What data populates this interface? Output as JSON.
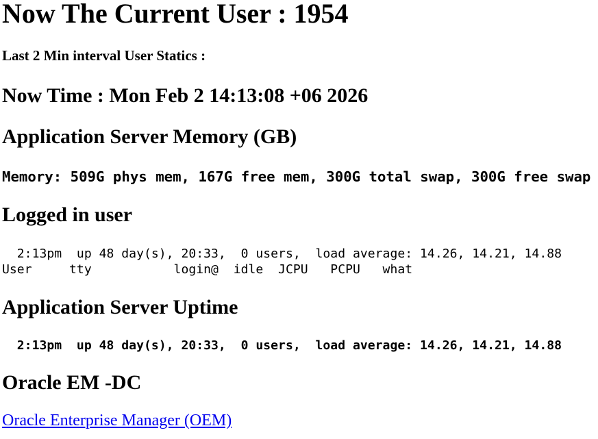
{
  "header": {
    "current_user_heading": "Now The Current User : 1954",
    "interval_note": "Last 2 Min interval User Statics :",
    "now_time_heading": "Now Time : Mon Feb 2 14:13:08 +06 2026"
  },
  "memory": {
    "heading": "Application Server Memory (GB)",
    "stats_line": "Memory: 509G phys mem, 167G free mem, 300G total swap, 300G free swap"
  },
  "logged_in_user": {
    "heading": "Logged in user",
    "uptime_line": "  2:13pm  up 48 day(s), 20:33,  0 users,  load average: 14.26, 14.21, 14.88",
    "columns_line": "User     tty           login@  idle  JCPU   PCPU   what"
  },
  "uptime": {
    "heading": "Application Server Uptime",
    "line": "  2:13pm  up 48 day(s), 20:33,  0 users,  load average: 14.26, 14.21, 14.88"
  },
  "oracle": {
    "heading": "Oracle EM -DC",
    "link_label": "Oracle Enterprise Manager (OEM)",
    "link_color": "#0000EE"
  }
}
